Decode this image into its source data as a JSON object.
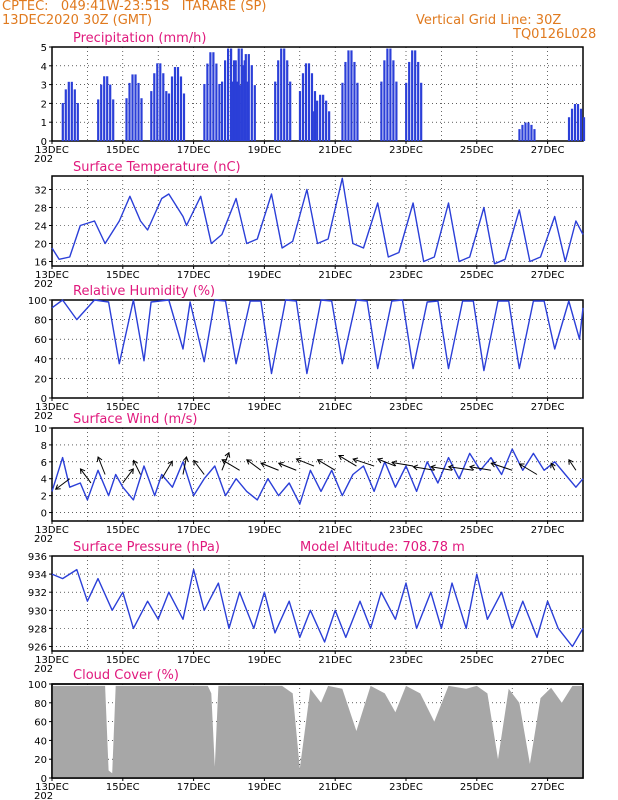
{
  "header": {
    "line1": "CPTEC:   049:41W-23:51S   ITARARE (SP)",
    "line2": "13DEC2020 30Z (GMT)",
    "grid_note": "Vertical Grid Line: 30Z",
    "code": "TQ0126L028"
  },
  "colors": {
    "series": "#2b3fd8",
    "title": "#e0197d",
    "header": "#e07a1f",
    "cloud": "#a7a7a7"
  },
  "x_ticks": [
    "13DEC",
    "15DEC",
    "17DEC",
    "19DEC",
    "21DEC",
    "23DEC",
    "25DEC",
    "27DEC"
  ],
  "x_cut_label": "202",
  "chart_data": [
    {
      "type": "bar",
      "title": "Precipitation (mm/h)",
      "ylim": [
        0,
        5
      ],
      "yticks": [
        0,
        1,
        2,
        3,
        4,
        5
      ],
      "days": [
        0.5,
        1.5,
        2.3,
        3,
        3.5,
        4.5,
        5,
        5.3,
        5.5,
        6.5,
        7.2,
        7.6,
        8.4,
        9.5,
        10.2,
        13.4,
        14.8
      ],
      "values": [
        3.2,
        3.5,
        3.6,
        4.2,
        4.0,
        4.8,
        5.0,
        5.0,
        4.7,
        5.0,
        4.2,
        2.5,
        4.9,
        5.0,
        4.9,
        1.0,
        2.0
      ]
    },
    {
      "type": "line",
      "title": "Surface Temperature (nC)",
      "ylim": [
        15,
        35
      ],
      "yticks": [
        16,
        20,
        24,
        28,
        32
      ],
      "days": [
        0,
        0.2,
        0.5,
        0.8,
        1.2,
        1.5,
        1.9,
        2.2,
        2.5,
        2.7,
        3.1,
        3.3,
        3.7,
        3.8,
        4.2,
        4.5,
        4.8,
        5.2,
        5.5,
        5.8,
        6.2,
        6.5,
        6.8,
        7.2,
        7.5,
        7.8,
        8.2,
        8.5,
        8.8,
        9.2,
        9.5,
        9.8,
        10.2,
        10.5,
        10.8,
        11.2,
        11.5,
        11.8,
        12.2,
        12.5,
        12.8,
        13.2,
        13.5,
        13.8,
        14.2,
        14.5,
        14.8,
        15
      ],
      "values": [
        19,
        16.5,
        17,
        24,
        25,
        20,
        25,
        30.5,
        25,
        23,
        30,
        31,
        26,
        24,
        30.5,
        20,
        22,
        30,
        20,
        21,
        31,
        19,
        20.5,
        32,
        20,
        21,
        34.5,
        20,
        19,
        29,
        17,
        18,
        29,
        16,
        17,
        29,
        16,
        17,
        28,
        15.5,
        16.5,
        27.5,
        16,
        17,
        26,
        16,
        25,
        22
      ]
    },
    {
      "type": "line",
      "title": "Relative Humidity (%)",
      "ylim": [
        0,
        100
      ],
      "yticks": [
        0,
        20,
        40,
        60,
        80,
        100
      ],
      "days": [
        0,
        0.3,
        0.7,
        1.2,
        1.6,
        1.9,
        2.3,
        2.6,
        2.8,
        3.3,
        3.7,
        3.9,
        4.3,
        4.6,
        4.9,
        5.2,
        5.6,
        5.9,
        6.2,
        6.6,
        6.9,
        7.2,
        7.6,
        7.9,
        8.2,
        8.6,
        8.9,
        9.2,
        9.6,
        9.9,
        10.2,
        10.6,
        10.9,
        11.2,
        11.6,
        11.9,
        12.2,
        12.6,
        12.9,
        13.2,
        13.6,
        13.9,
        14.2,
        14.6,
        14.9,
        15
      ],
      "values": [
        92,
        100,
        80,
        100,
        98,
        35,
        100,
        38,
        98,
        100,
        50,
        98,
        37,
        100,
        99,
        35,
        99,
        99,
        25,
        100,
        99,
        25,
        100,
        99,
        35,
        100,
        99,
        30,
        99,
        100,
        30,
        98,
        99,
        30,
        99,
        99,
        28,
        99,
        99,
        30,
        99,
        99,
        50,
        99,
        60,
        92
      ]
    },
    {
      "type": "line",
      "title": "Surface Wind (m/s)",
      "ylim": [
        -1,
        10
      ],
      "yticks": [
        0,
        2,
        4,
        6,
        8,
        10
      ],
      "days": [
        0,
        0.3,
        0.5,
        0.8,
        1.0,
        1.3,
        1.6,
        1.8,
        2.0,
        2.3,
        2.6,
        2.9,
        3.1,
        3.4,
        3.7,
        4.0,
        4.3,
        4.6,
        4.9,
        5.2,
        5.5,
        5.8,
        6.1,
        6.4,
        6.7,
        7.0,
        7.3,
        7.6,
        7.9,
        8.2,
        8.5,
        8.8,
        9.1,
        9.4,
        9.7,
        10.0,
        10.3,
        10.6,
        10.9,
        11.2,
        11.5,
        11.8,
        12.1,
        12.4,
        12.7,
        13.0,
        13.3,
        13.6,
        13.9,
        14.2,
        14.5,
        14.8,
        15
      ],
      "values": [
        2.5,
        6.5,
        3,
        3.5,
        1.5,
        5,
        2,
        4.5,
        3,
        1.5,
        5.5,
        2,
        4.5,
        3,
        6,
        2,
        4,
        5.5,
        2,
        4,
        2.5,
        1.5,
        4,
        2,
        3.5,
        1,
        5,
        2.5,
        5,
        2,
        4.5,
        5.5,
        2.5,
        6,
        3,
        5.5,
        2.5,
        6,
        3.5,
        6.5,
        4,
        7,
        5,
        6.5,
        4.5,
        7.5,
        5,
        7,
        5,
        6,
        4.5,
        3,
        4
      ],
      "vectors": [
        [
          0.5,
          4,
          -2,
          -1.5
        ],
        [
          1.1,
          3.5,
          -1.5,
          2
        ],
        [
          1.5,
          4.5,
          -1,
          2.5
        ],
        [
          2.0,
          3.5,
          1.5,
          2
        ],
        [
          2.5,
          4.5,
          -1,
          2
        ],
        [
          3.1,
          4,
          1.5,
          2.5
        ],
        [
          3.7,
          4.5,
          0.5,
          2.5
        ],
        [
          4.3,
          4.5,
          -1.5,
          2
        ],
        [
          4.8,
          5,
          1,
          2.5
        ],
        [
          5.3,
          5,
          -2.5,
          1.5
        ],
        [
          5.9,
          5,
          -2,
          1.5
        ],
        [
          6.4,
          5,
          -2.5,
          1
        ],
        [
          6.9,
          5,
          -2.5,
          1
        ],
        [
          7.4,
          5.5,
          -2.5,
          1
        ],
        [
          8.0,
          5,
          -2.5,
          1.5
        ],
        [
          8.6,
          5.5,
          -2.5,
          1.5
        ],
        [
          9.1,
          5.5,
          -3,
          1
        ],
        [
          9.7,
          5.5,
          -2.5,
          1
        ],
        [
          10.2,
          5.5,
          -3,
          0.5
        ],
        [
          10.8,
          5,
          -3,
          0.5
        ],
        [
          11.3,
          5,
          -3,
          0.5
        ],
        [
          11.9,
          5,
          -3.5,
          0.5
        ],
        [
          12.4,
          5,
          -3,
          0.5
        ],
        [
          13.0,
          5,
          -3,
          1
        ],
        [
          13.7,
          4.5,
          -2.5,
          1.5
        ],
        [
          14.2,
          5,
          -0.5,
          1
        ],
        [
          14.8,
          5,
          -1,
          1.5
        ]
      ]
    },
    {
      "type": "line",
      "title": "Surface Pressure (hPa)",
      "altitude": "Model Altitude: 708.78 m",
      "ylim": [
        925.5,
        936
      ],
      "yticks": [
        926,
        928,
        930,
        932,
        934,
        936
      ],
      "days": [
        0,
        0.3,
        0.7,
        1.0,
        1.3,
        1.7,
        2.0,
        2.3,
        2.7,
        3.0,
        3.3,
        3.7,
        4.0,
        4.3,
        4.7,
        5.0,
        5.3,
        5.7,
        6.0,
        6.3,
        6.7,
        7.0,
        7.3,
        7.7,
        8.0,
        8.3,
        8.7,
        9.0,
        9.3,
        9.7,
        10.0,
        10.3,
        10.7,
        11.0,
        11.3,
        11.7,
        12.0,
        12.3,
        12.7,
        13.0,
        13.3,
        13.7,
        14.0,
        14.3,
        14.7,
        15
      ],
      "values": [
        934,
        933.5,
        934.5,
        931,
        933.5,
        930,
        932,
        928,
        931,
        929,
        932,
        929,
        934.5,
        930,
        933,
        928,
        932,
        928,
        932,
        927.5,
        931,
        927,
        930,
        926.5,
        930,
        927,
        931,
        928,
        932,
        929,
        933,
        928,
        932,
        928,
        933,
        928,
        934,
        929,
        932,
        928,
        931,
        927,
        931,
        928,
        926,
        928
      ]
    },
    {
      "type": "area",
      "title": "Cloud Cover (%)",
      "ylim": [
        0,
        100
      ],
      "yticks": [
        0,
        20,
        40,
        60,
        80,
        100
      ],
      "days": [
        0,
        1.5,
        1.6,
        1.7,
        1.8,
        4.4,
        4.5,
        4.6,
        4.7,
        6.5,
        6.8,
        7.0,
        7.3,
        7.6,
        7.8,
        8.2,
        8.6,
        9.0,
        9.4,
        9.7,
        10.0,
        10.4,
        10.8,
        11.2,
        11.7,
        12.0,
        12.3,
        12.6,
        12.9,
        13.2,
        13.5,
        13.8,
        14.1,
        14.4,
        14.7,
        15
      ],
      "values": [
        98,
        98,
        8,
        5,
        98,
        98,
        90,
        12,
        98,
        98,
        90,
        10,
        95,
        80,
        98,
        95,
        50,
        98,
        90,
        70,
        98,
        90,
        60,
        98,
        95,
        98,
        90,
        20,
        95,
        80,
        15,
        85,
        96,
        80,
        98,
        98
      ]
    }
  ]
}
